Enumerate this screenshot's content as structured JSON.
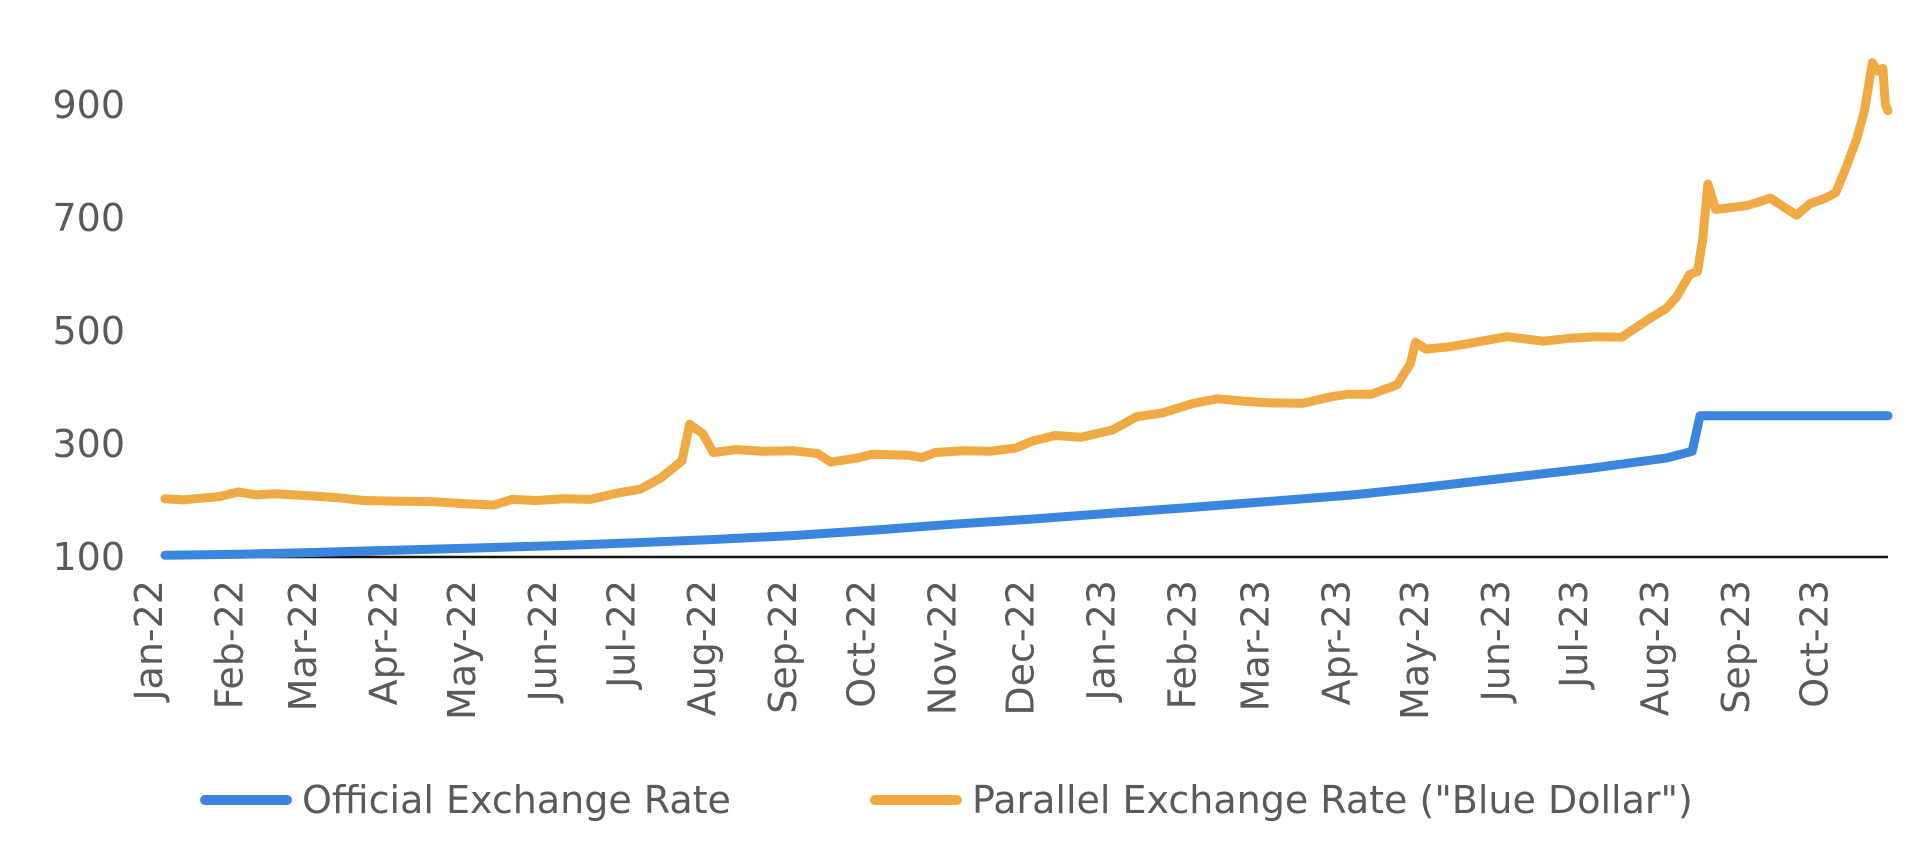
{
  "chart_data": {
    "type": "line",
    "title": "",
    "xlabel": "",
    "ylabel": "",
    "x_ticks": [
      "Jan-22",
      "Feb-22",
      "Mar-22",
      "Apr-22",
      "May-22",
      "Jun-22",
      "Jul-22",
      "Aug-22",
      "Sep-22",
      "Oct-22",
      "Nov-22",
      "Dec-22",
      "Jan-23",
      "Feb-23",
      "Mar-23",
      "Apr-23",
      "May-23",
      "Jun-23",
      "Jul-23",
      "Aug-23",
      "Sep-23",
      "Oct-23"
    ],
    "y_ticks": [
      100,
      300,
      500,
      700,
      900
    ],
    "ylim": [
      100,
      1000
    ],
    "grid": false,
    "legend_position": "bottom",
    "series": [
      {
        "name": "Official Exchange Rate",
        "color": "#3a85de",
        "points": [
          [
            "2022-01-03",
            103
          ],
          [
            "2022-02-01",
            105
          ],
          [
            "2022-03-01",
            108
          ],
          [
            "2022-04-01",
            112
          ],
          [
            "2022-05-02",
            116
          ],
          [
            "2022-06-01",
            120
          ],
          [
            "2022-07-01",
            125
          ],
          [
            "2022-08-01",
            131
          ],
          [
            "2022-09-01",
            138
          ],
          [
            "2022-10-03",
            148
          ],
          [
            "2022-11-01",
            158
          ],
          [
            "2022-12-01",
            167
          ],
          [
            "2023-01-02",
            178
          ],
          [
            "2023-02-01",
            188
          ],
          [
            "2023-03-01",
            198
          ],
          [
            "2023-04-03",
            210
          ],
          [
            "2023-05-02",
            224
          ],
          [
            "2023-06-01",
            240
          ],
          [
            "2023-07-03",
            257
          ],
          [
            "2023-08-01",
            275
          ],
          [
            "2023-08-11",
            287
          ],
          [
            "2023-08-14",
            350
          ],
          [
            "2023-09-01",
            350
          ],
          [
            "2023-10-02",
            350
          ],
          [
            "2023-10-25",
            350
          ]
        ]
      },
      {
        "name": "Parallel Exchange Rate (\"Blue Dollar\")",
        "color": "#f0aa44",
        "points": [
          [
            "2022-01-03",
            203
          ],
          [
            "2022-01-10",
            201
          ],
          [
            "2022-01-17",
            204
          ],
          [
            "2022-01-24",
            207
          ],
          [
            "2022-01-31",
            215
          ],
          [
            "2022-02-07",
            210
          ],
          [
            "2022-02-14",
            212
          ],
          [
            "2022-02-21",
            210
          ],
          [
            "2022-03-01",
            208
          ],
          [
            "2022-03-10",
            205
          ],
          [
            "2022-03-20",
            200
          ],
          [
            "2022-04-01",
            199
          ],
          [
            "2022-04-15",
            198
          ],
          [
            "2022-04-29",
            194
          ],
          [
            "2022-05-09",
            192
          ],
          [
            "2022-05-16",
            202
          ],
          [
            "2022-05-25",
            200
          ],
          [
            "2022-06-05",
            203
          ],
          [
            "2022-06-15",
            202
          ],
          [
            "2022-06-25",
            213
          ],
          [
            "2022-07-04",
            220
          ],
          [
            "2022-07-12",
            240
          ],
          [
            "2022-07-20",
            270
          ],
          [
            "2022-07-23",
            335
          ],
          [
            "2022-07-28",
            318
          ],
          [
            "2022-08-01",
            285
          ],
          [
            "2022-08-10",
            290
          ],
          [
            "2022-08-20",
            287
          ],
          [
            "2022-09-01",
            288
          ],
          [
            "2022-09-10",
            283
          ],
          [
            "2022-09-15",
            268
          ],
          [
            "2022-09-25",
            275
          ],
          [
            "2022-10-01",
            282
          ],
          [
            "2022-10-15",
            280
          ],
          [
            "2022-10-20",
            276
          ],
          [
            "2022-10-25",
            285
          ],
          [
            "2022-11-05",
            288
          ],
          [
            "2022-11-15",
            287
          ],
          [
            "2022-11-25",
            293
          ],
          [
            "2022-12-01",
            305
          ],
          [
            "2022-12-10",
            315
          ],
          [
            "2022-12-20",
            312
          ],
          [
            "2023-01-01",
            325
          ],
          [
            "2023-01-10",
            348
          ],
          [
            "2023-01-20",
            355
          ],
          [
            "2023-02-01",
            372
          ],
          [
            "2023-02-10",
            380
          ],
          [
            "2023-02-20",
            376
          ],
          [
            "2023-03-01",
            373
          ],
          [
            "2023-03-15",
            372
          ],
          [
            "2023-03-25",
            383
          ],
          [
            "2023-04-01",
            388
          ],
          [
            "2023-04-10",
            388
          ],
          [
            "2023-04-20",
            405
          ],
          [
            "2023-04-25",
            442
          ],
          [
            "2023-04-27",
            480
          ],
          [
            "2023-05-01",
            468
          ],
          [
            "2023-05-10",
            472
          ],
          [
            "2023-05-20",
            480
          ],
          [
            "2023-06-01",
            490
          ],
          [
            "2023-06-15",
            482
          ],
          [
            "2023-06-25",
            487
          ],
          [
            "2023-07-05",
            490
          ],
          [
            "2023-07-15",
            489
          ],
          [
            "2023-07-25",
            520
          ],
          [
            "2023-08-01",
            540
          ],
          [
            "2023-08-05",
            560
          ],
          [
            "2023-08-10",
            600
          ],
          [
            "2023-08-13",
            605
          ],
          [
            "2023-08-15",
            660
          ],
          [
            "2023-08-17",
            760
          ],
          [
            "2023-08-20",
            715
          ],
          [
            "2023-09-01",
            722
          ],
          [
            "2023-09-10",
            735
          ],
          [
            "2023-09-20",
            705
          ],
          [
            "2023-09-25",
            725
          ],
          [
            "2023-10-01",
            735
          ],
          [
            "2023-10-05",
            745
          ],
          [
            "2023-10-09",
            790
          ],
          [
            "2023-10-13",
            840
          ],
          [
            "2023-10-16",
            890
          ],
          [
            "2023-10-19",
            975
          ],
          [
            "2023-10-21",
            960
          ],
          [
            "2023-10-23",
            965
          ],
          [
            "2023-10-24",
            900
          ],
          [
            "2023-10-25",
            890
          ]
        ]
      }
    ]
  }
}
